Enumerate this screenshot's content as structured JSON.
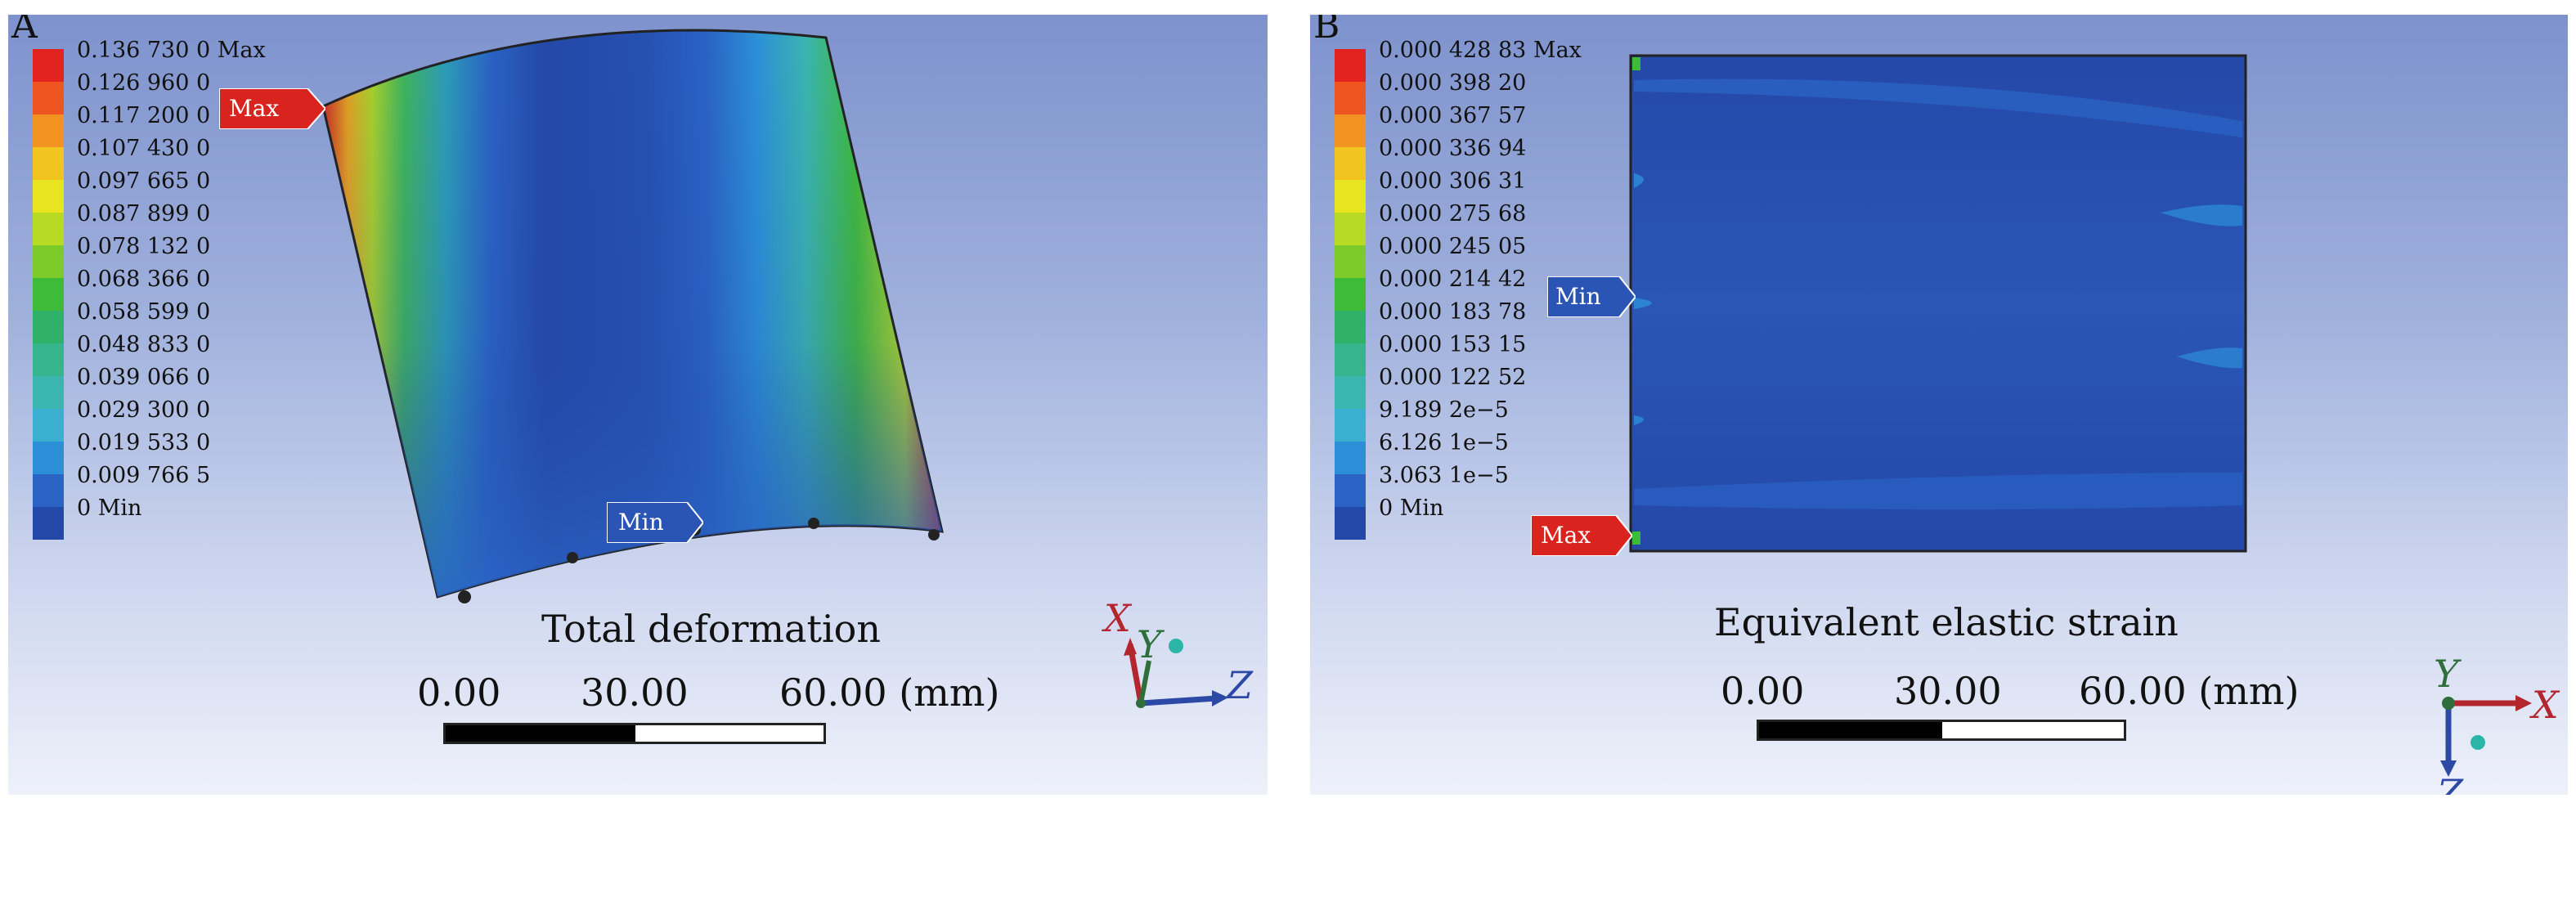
{
  "panel_a": {
    "letter": "A",
    "caption": "Total deformation",
    "legend": [
      {
        "label": "0.136 730 0 Max",
        "color": "#e3231f"
      },
      {
        "label": "0.126 960 0",
        "color": "#ee5521"
      },
      {
        "label": "0.117 200 0",
        "color": "#f29220"
      },
      {
        "label": "0.107 430 0",
        "color": "#f2c420"
      },
      {
        "label": "0.097 665 0",
        "color": "#e8e41f"
      },
      {
        "label": "0.087 899 0",
        "color": "#b7da24"
      },
      {
        "label": "0.078 132 0",
        "color": "#7ccb2b"
      },
      {
        "label": "0.068 366 0",
        "color": "#3fbb3a"
      },
      {
        "label": "0.058 599 0",
        "color": "#2fb169"
      },
      {
        "label": "0.048 833 0",
        "color": "#35b48d"
      },
      {
        "label": "0.039 066 0",
        "color": "#3ab5b0"
      },
      {
        "label": "0.029 300 0",
        "color": "#3aafd0"
      },
      {
        "label": "0.019 533 0",
        "color": "#2c8fd8"
      },
      {
        "label": "0.009 766 5",
        "color": "#2a63c4"
      },
      {
        "label": "0 Min",
        "color": "#2448a8"
      }
    ],
    "max_tag": "Max",
    "min_tag": "Min",
    "scale": {
      "t0": "0.00",
      "t1": "30.00",
      "t2": "60.00 (mm)"
    },
    "axes": {
      "x": "X",
      "y": "Y",
      "z": "Z"
    }
  },
  "panel_b": {
    "letter": "B",
    "caption": "Equivalent elastic strain",
    "legend": [
      {
        "label": "0.000 428 83 Max",
        "color": "#e3231f"
      },
      {
        "label": "0.000 398 20",
        "color": "#ee5521"
      },
      {
        "label": "0.000 367 57",
        "color": "#f29220"
      },
      {
        "label": "0.000 336 94",
        "color": "#f2c420"
      },
      {
        "label": "0.000 306 31",
        "color": "#e8e41f"
      },
      {
        "label": "0.000 275 68",
        "color": "#b7da24"
      },
      {
        "label": "0.000 245 05",
        "color": "#7ccb2b"
      },
      {
        "label": "0.000 214 42",
        "color": "#3fbb3a"
      },
      {
        "label": "0.000 183 78",
        "color": "#2fb169"
      },
      {
        "label": "0.000 153 15",
        "color": "#35b48d"
      },
      {
        "label": "0.000 122 52",
        "color": "#3ab5b0"
      },
      {
        "label": "9.189 2e−5",
        "color": "#3aafd0"
      },
      {
        "label": "6.126 1e−5",
        "color": "#2c8fd8"
      },
      {
        "label": "3.063 1e−5",
        "color": "#2a63c4"
      },
      {
        "label": "0 Min",
        "color": "#2448a8"
      }
    ],
    "max_tag": "Max",
    "min_tag": "Min",
    "scale": {
      "t0": "0.00",
      "t1": "30.00",
      "t2": "60.00 (mm)"
    },
    "axes": {
      "x": "X",
      "y": "Y",
      "z": "Z"
    }
  }
}
